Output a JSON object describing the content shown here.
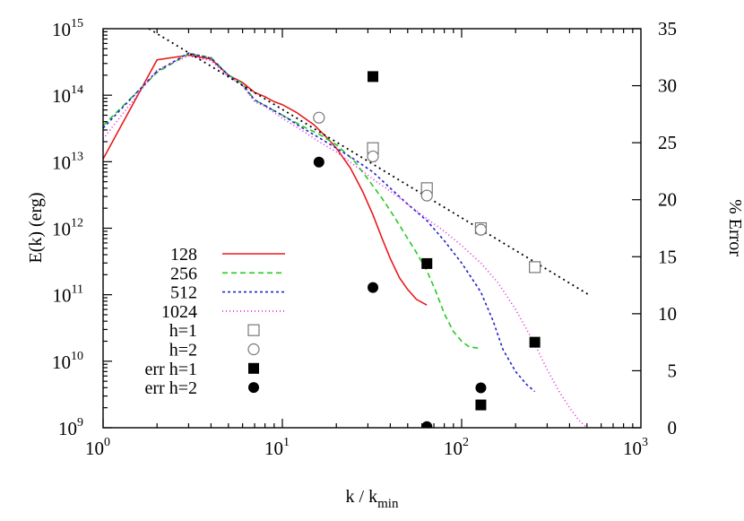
{
  "chart_data": {
    "type": "line",
    "title": "",
    "xlabel": "k / k",
    "xlabel_sub": "min",
    "ylabel": "E(k) (erg)",
    "y2label": "% Error",
    "x_scale": "log",
    "y_scale": "log",
    "xlim": [
      1,
      1000
    ],
    "ylim": [
      1000000000.0,
      1000000000000000.0
    ],
    "y2lim": [
      0,
      35
    ],
    "grid": false,
    "legend_position": "bottom-left",
    "x_ticks": [
      {
        "base": "10",
        "exp": "0",
        "value": 1
      },
      {
        "base": "10",
        "exp": "1",
        "value": 10
      },
      {
        "base": "10",
        "exp": "2",
        "value": 100
      },
      {
        "base": "10",
        "exp": "3",
        "value": 1000
      }
    ],
    "y_ticks": [
      {
        "base": "10",
        "exp": "9",
        "value": 1000000000.0
      },
      {
        "base": "10",
        "exp": "10",
        "value": 10000000000.0
      },
      {
        "base": "10",
        "exp": "11",
        "value": 100000000000.0
      },
      {
        "base": "10",
        "exp": "12",
        "value": 1000000000000.0
      },
      {
        "base": "10",
        "exp": "13",
        "value": 10000000000000.0
      },
      {
        "base": "10",
        "exp": "14",
        "value": 100000000000000.0
      },
      {
        "base": "10",
        "exp": "15",
        "value": 1000000000000000.0
      }
    ],
    "y2_ticks": [
      "0",
      "5",
      "10",
      "15",
      "20",
      "25",
      "30",
      "35"
    ],
    "series": [
      {
        "name": "128",
        "kind": "line",
        "color": "#e8191c",
        "dash": "none",
        "axis": "left",
        "x": [
          1,
          2,
          3,
          4,
          5,
          6,
          7,
          8,
          9,
          10,
          12,
          15,
          18,
          20,
          24,
          28,
          32,
          36,
          40,
          45,
          50,
          56,
          64
        ],
        "y": [
          11000000000000.0,
          340000000000000.0,
          400000000000000.0,
          350000000000000.0,
          200000000000000.0,
          155000000000000.0,
          110000000000000.0,
          95000000000000.0,
          80000000000000.0,
          72000000000000.0,
          55000000000000.0,
          36000000000000.0,
          22000000000000.0,
          16000000000000.0,
          8000000000000.0,
          3600000000000.0,
          1600000000000.0,
          700000000000.0,
          350000000000.0,
          180000000000.0,
          120000000000.0,
          85000000000.0,
          70000000000.0
        ]
      },
      {
        "name": "256",
        "kind": "line",
        "color": "#22cc22",
        "dash": "6,4",
        "axis": "left",
        "x": [
          1,
          2,
          3,
          4,
          5,
          6,
          7,
          8,
          10,
          13,
          16,
          20,
          25,
          30,
          36,
          42,
          50,
          56,
          64,
          72,
          80,
          90,
          100,
          110,
          128
        ],
        "y": [
          35000000000000.0,
          220000000000000.0,
          420000000000000.0,
          370000000000000.0,
          200000000000000.0,
          150000000000000.0,
          85000000000000.0,
          70000000000000.0,
          50000000000000.0,
          34000000000000.0,
          26000000000000.0,
          18000000000000.0,
          10500000000000.0,
          5500000000000.0,
          2800000000000.0,
          1500000000000.0,
          700000000000.0,
          430000000000.0,
          230000000000.0,
          110000000000.0,
          52000000000.0,
          28000000000.0,
          20000000000.0,
          16500000000.0,
          15500000000.0
        ]
      },
      {
        "name": "512",
        "kind": "line",
        "color": "#2222cc",
        "dash": "3,3",
        "axis": "left",
        "x": [
          1,
          2,
          3,
          4,
          5,
          6,
          7,
          8,
          10,
          13,
          16,
          20,
          25,
          32,
          40,
          50,
          64,
          80,
          100,
          128,
          150,
          170,
          200,
          230,
          256
        ],
        "y": [
          32000000000000.0,
          230000000000000.0,
          430000000000000.0,
          360000000000000.0,
          200000000000000.0,
          140000000000000.0,
          85000000000000.0,
          70000000000000.0,
          50000000000000.0,
          32000000000000.0,
          23000000000000.0,
          16000000000000.0,
          11000000000000.0,
          7000000000000.0,
          4000000000000.0,
          2300000000000.0,
          1300000000000.0,
          650000000000.0,
          300000000000.0,
          110000000000.0,
          40000000000.0,
          15000000000.0,
          7000000000.0,
          4500000000.0,
          3500000000.0
        ]
      },
      {
        "name": "1024",
        "kind": "line",
        "color": "#dd22dd",
        "dash": "1,3",
        "axis": "left",
        "x": [
          1,
          2,
          3,
          4,
          5,
          6,
          7,
          8,
          10,
          13,
          16,
          20,
          25,
          32,
          40,
          50,
          64,
          80,
          100,
          128,
          160,
          200,
          256,
          300,
          350,
          400,
          450,
          500
        ],
        "y": [
          22000000000000.0,
          240000000000000.0,
          390000000000000.0,
          330000000000000.0,
          190000000000000.0,
          140000000000000.0,
          80000000000000.0,
          68000000000000.0,
          45000000000000.0,
          29000000000000.0,
          20000000000000.0,
          14000000000000.0,
          9000000000000.0,
          5500000000000.0,
          3600000000000.0,
          2300000000000.0,
          1400000000000.0,
          900000000000.0,
          550000000000.0,
          300000000000.0,
          150000000000.0,
          60000000000.0,
          18000000000.0,
          7500000000.0,
          3500000000.0,
          2000000000.0,
          1300000000.0,
          1000000000.0
        ]
      },
      {
        "name": "",
        "kind": "line",
        "color": "#000000",
        "dash": "2,4",
        "axis": "left",
        "x": [
          1.8,
          512
        ],
        "y": [
          1000000000000000.0,
          100000000000.0
        ]
      },
      {
        "name": "h=1",
        "kind": "points",
        "marker": "square-open",
        "axis": "left",
        "x": [
          32,
          64,
          128,
          256
        ],
        "y": [
          16000000000000.0,
          4000000000000.0,
          1000000000000.0,
          260000000000.0
        ]
      },
      {
        "name": "h=2",
        "kind": "points",
        "marker": "circle-open",
        "axis": "left",
        "x": [
          16,
          32,
          64,
          128
        ],
        "y": [
          46000000000000.0,
          12000000000000.0,
          3100000000000.0,
          950000000000.0
        ]
      },
      {
        "name": "err h=1",
        "kind": "points",
        "marker": "square-filled",
        "axis": "right",
        "x": [
          32,
          64,
          128,
          256
        ],
        "y": [
          30.8,
          14.4,
          2.0,
          7.5
        ]
      },
      {
        "name": "err h=2",
        "kind": "points",
        "marker": "circle-filled",
        "axis": "right",
        "x": [
          16,
          32,
          64,
          128
        ],
        "y": [
          23.3,
          12.3,
          0.1,
          3.5
        ]
      }
    ]
  }
}
